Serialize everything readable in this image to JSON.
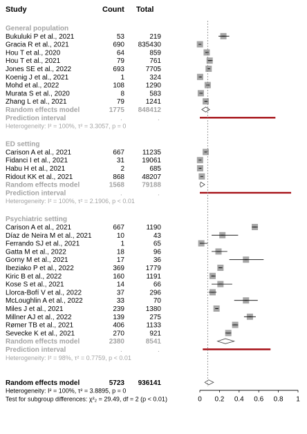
{
  "header": {
    "study": "Study",
    "count": "Count",
    "total": "Total"
  },
  "chart_data": {
    "type": "forest",
    "x_axis": {
      "ticks": [
        "0",
        "0.2",
        "0.4",
        "0.6",
        "0.8",
        "1"
      ],
      "range": [
        0,
        1
      ],
      "reference_line": 0.08
    },
    "groups": [
      {
        "name": "General population",
        "studies": [
          {
            "study": "Bukuluki P et al., 2021",
            "count": "53",
            "total": "219",
            "est": 0.24,
            "lo": 0.19,
            "hi": 0.3
          },
          {
            "study": "Gracia R et al., 2021",
            "count": "690",
            "total": "835430",
            "est": 0.001,
            "lo": 0.0,
            "hi": 0.002
          },
          {
            "study": "Hou T et al., 2020",
            "count": "64",
            "total": "859",
            "est": 0.07,
            "lo": 0.06,
            "hi": 0.09
          },
          {
            "study": "Hou T et al., 2021",
            "count": "79",
            "total": "761",
            "est": 0.1,
            "lo": 0.08,
            "hi": 0.13
          },
          {
            "study": "Jones SE et al., 2022",
            "count": "693",
            "total": "7705",
            "est": 0.09,
            "lo": 0.08,
            "hi": 0.1
          },
          {
            "study": "Koenig J et al., 2021",
            "count": "1",
            "total": "324",
            "est": 0.003,
            "lo": 0.0,
            "hi": 0.02
          },
          {
            "study": "Mohd et al., 2022",
            "count": "108",
            "total": "1290",
            "est": 0.08,
            "lo": 0.07,
            "hi": 0.1
          },
          {
            "study": "Murata S et al., 2020",
            "count": "8",
            "total": "583",
            "est": 0.01,
            "lo": 0.01,
            "hi": 0.03
          },
          {
            "study": "Zhang L et al., 2021",
            "count": "79",
            "total": "1241",
            "est": 0.06,
            "lo": 0.05,
            "hi": 0.08
          }
        ],
        "re_label": "Random effects model",
        "re_count": "1775",
        "re_total": "848412",
        "re": {
          "est": 0.06,
          "lo": 0.02,
          "hi": 0.1
        },
        "pi_label": "Prediction interval",
        "pi": {
          "lo": 0.0,
          "hi": 0.77
        },
        "het": "Heterogeneity: I² = 100%, τ² = 3.3057, p = 0"
      },
      {
        "name": "ED setting",
        "studies": [
          {
            "study": "Carison A et al., 2021",
            "count": "667",
            "total": "11235",
            "est": 0.06,
            "lo": 0.05,
            "hi": 0.06
          },
          {
            "study": "Fidanci I et al., 2021",
            "count": "31",
            "total": "19061",
            "est": 0.002,
            "lo": 0.001,
            "hi": 0.002
          },
          {
            "study": "Habu H et al., 2021",
            "count": "2",
            "total": "685",
            "est": 0.003,
            "lo": 0.0,
            "hi": 0.01
          },
          {
            "study": "Ridout KK et al., 2021",
            "count": "868",
            "total": "48207",
            "est": 0.02,
            "lo": 0.02,
            "hi": 0.02
          }
        ],
        "re_label": "Random effects model",
        "re_count": "1568",
        "re_total": "79188",
        "re": {
          "est": 0.01,
          "lo": 0.0,
          "hi": 0.05
        },
        "pi_label": "Prediction interval",
        "pi": {
          "lo": 0.0,
          "hi": 0.93
        },
        "het": "Heterogeneity: I² = 100%, τ² = 2.1906, p < 0.01"
      },
      {
        "name": "Psychiatric setting",
        "studies": [
          {
            "study": "Carison A et al., 2021",
            "count": "667",
            "total": "1190",
            "est": 0.56,
            "lo": 0.53,
            "hi": 0.59
          },
          {
            "study": "Díaz de Neira M et al., 2021",
            "count": "10",
            "total": "43",
            "est": 0.23,
            "lo": 0.12,
            "hi": 0.39
          },
          {
            "study": "Ferrando SJ et al., 2021",
            "count": "1",
            "total": "65",
            "est": 0.015,
            "lo": 0.0,
            "hi": 0.08
          },
          {
            "study": "Gatta M et al., 2022",
            "count": "18",
            "total": "96",
            "est": 0.19,
            "lo": 0.12,
            "hi": 0.28
          },
          {
            "study": "Gorny M et al., 2021",
            "count": "17",
            "total": "36",
            "est": 0.47,
            "lo": 0.3,
            "hi": 0.65
          },
          {
            "study": "Ibeziako P et al., 2022",
            "count": "369",
            "total": "1779",
            "est": 0.21,
            "lo": 0.19,
            "hi": 0.23
          },
          {
            "study": "Kiric B et al., 2022",
            "count": "160",
            "total": "1191",
            "est": 0.13,
            "lo": 0.12,
            "hi": 0.16
          },
          {
            "study": "Kose S et al., 2021",
            "count": "14",
            "total": "66",
            "est": 0.21,
            "lo": 0.12,
            "hi": 0.33
          },
          {
            "study": "Llorca-Bofí V et al., 2022",
            "count": "37",
            "total": "296",
            "est": 0.13,
            "lo": 0.09,
            "hi": 0.17
          },
          {
            "study": "McLoughlin A et al., 2022",
            "count": "33",
            "total": "70",
            "est": 0.47,
            "lo": 0.35,
            "hi": 0.59
          },
          {
            "study": "Miles J et al., 2021",
            "count": "239",
            "total": "1380",
            "est": 0.17,
            "lo": 0.16,
            "hi": 0.19
          },
          {
            "study": "Millner AJ et al., 2022",
            "count": "139",
            "total": "275",
            "est": 0.51,
            "lo": 0.45,
            "hi": 0.57
          },
          {
            "study": "Rømer TB et al., 2021",
            "count": "406",
            "total": "1133",
            "est": 0.36,
            "lo": 0.33,
            "hi": 0.39
          },
          {
            "study": "Sevecke K et al., 2021",
            "count": "270",
            "total": "921",
            "est": 0.29,
            "lo": 0.26,
            "hi": 0.32
          }
        ],
        "re_label": "Random effects model",
        "re_count": "2380",
        "re_total": "8541",
        "re": {
          "est": 0.26,
          "lo": 0.18,
          "hi": 0.35
        },
        "pi_label": "Prediction interval",
        "pi": {
          "lo": 0.03,
          "hi": 0.72
        },
        "het": "Heterogeneity: I² = 98%, τ² = 0.7759, p < 0.01"
      }
    ],
    "overall": {
      "label": "Random effects model",
      "count": "5723",
      "total": "936141",
      "re": {
        "est": 0.09,
        "lo": 0.05,
        "hi": 0.14
      },
      "het": "Heterogeneity: I² = 100%, τ² = 3.8895, p = 0",
      "subgroup": "Test for subgroup differences: χ²₂ = 29.49, df = 2 (p < 0.01)"
    },
    "colors": {
      "square": "#a6a6a6",
      "prediction": "#a50f15",
      "reference": "#808080",
      "muted": "#a3a3a3"
    }
  }
}
